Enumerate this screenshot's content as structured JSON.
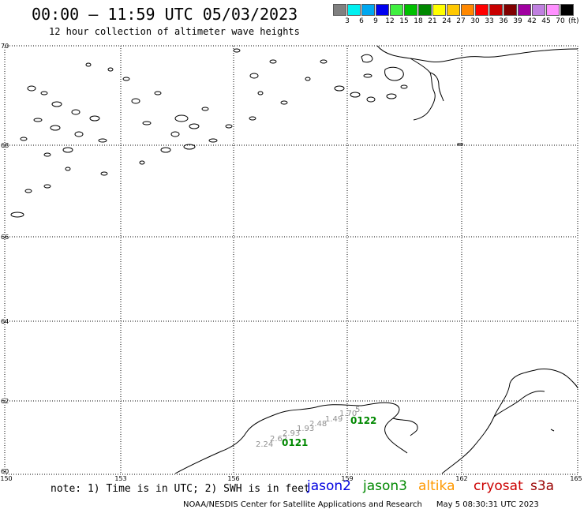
{
  "header": {
    "title": "00:00 – 11:59 UTC 05/03/2023",
    "subtitle": "12 hour collection of altimeter wave heights"
  },
  "color_scale": {
    "colors": [
      "#808080",
      "#00f0f0",
      "#00a8f0",
      "#0000f0",
      "#40f040",
      "#00c000",
      "#008800",
      "#ffff00",
      "#ffc800",
      "#ff8800",
      "#ff0000",
      "#c80000",
      "#800000",
      "#a000a0",
      "#c080e0",
      "#ff90ff",
      "#000000"
    ],
    "labels": [
      "3",
      "6",
      "9",
      "12",
      "15",
      "18",
      "21",
      "24",
      "27",
      "30",
      "33",
      "36",
      "39",
      "42",
      "45",
      "70"
    ],
    "unit": "(ft)"
  },
  "map": {
    "lon_ticks": [
      "150",
      "153",
      "156",
      "159",
      "162",
      "165"
    ],
    "lat_ticks": [
      "70",
      "68",
      "66",
      "64",
      "62",
      "60"
    ],
    "swh_values": [
      "2.24",
      "2.62",
      "2.93",
      "1.93",
      "2.48",
      "1.49",
      "1.70",
      "5."
    ],
    "pass_labels": [
      "0121",
      "0122"
    ]
  },
  "note": "note: 1) Time is in UTC; 2) SWH is in feet",
  "satellites": [
    {
      "name": "jason2",
      "color": "#0000e0"
    },
    {
      "name": "jason3",
      "color": "#008800"
    },
    {
      "name": "altika",
      "color": "#ff9900"
    },
    {
      "name": "cryosat",
      "color": "#cc0000"
    },
    {
      "name": "s3a",
      "color": "#990000"
    }
  ],
  "credit": {
    "center": "NOAA/NESDIS Center for Satellite Applications and Research",
    "timestamp": "May  5 08:30:31 UTC 2023"
  }
}
